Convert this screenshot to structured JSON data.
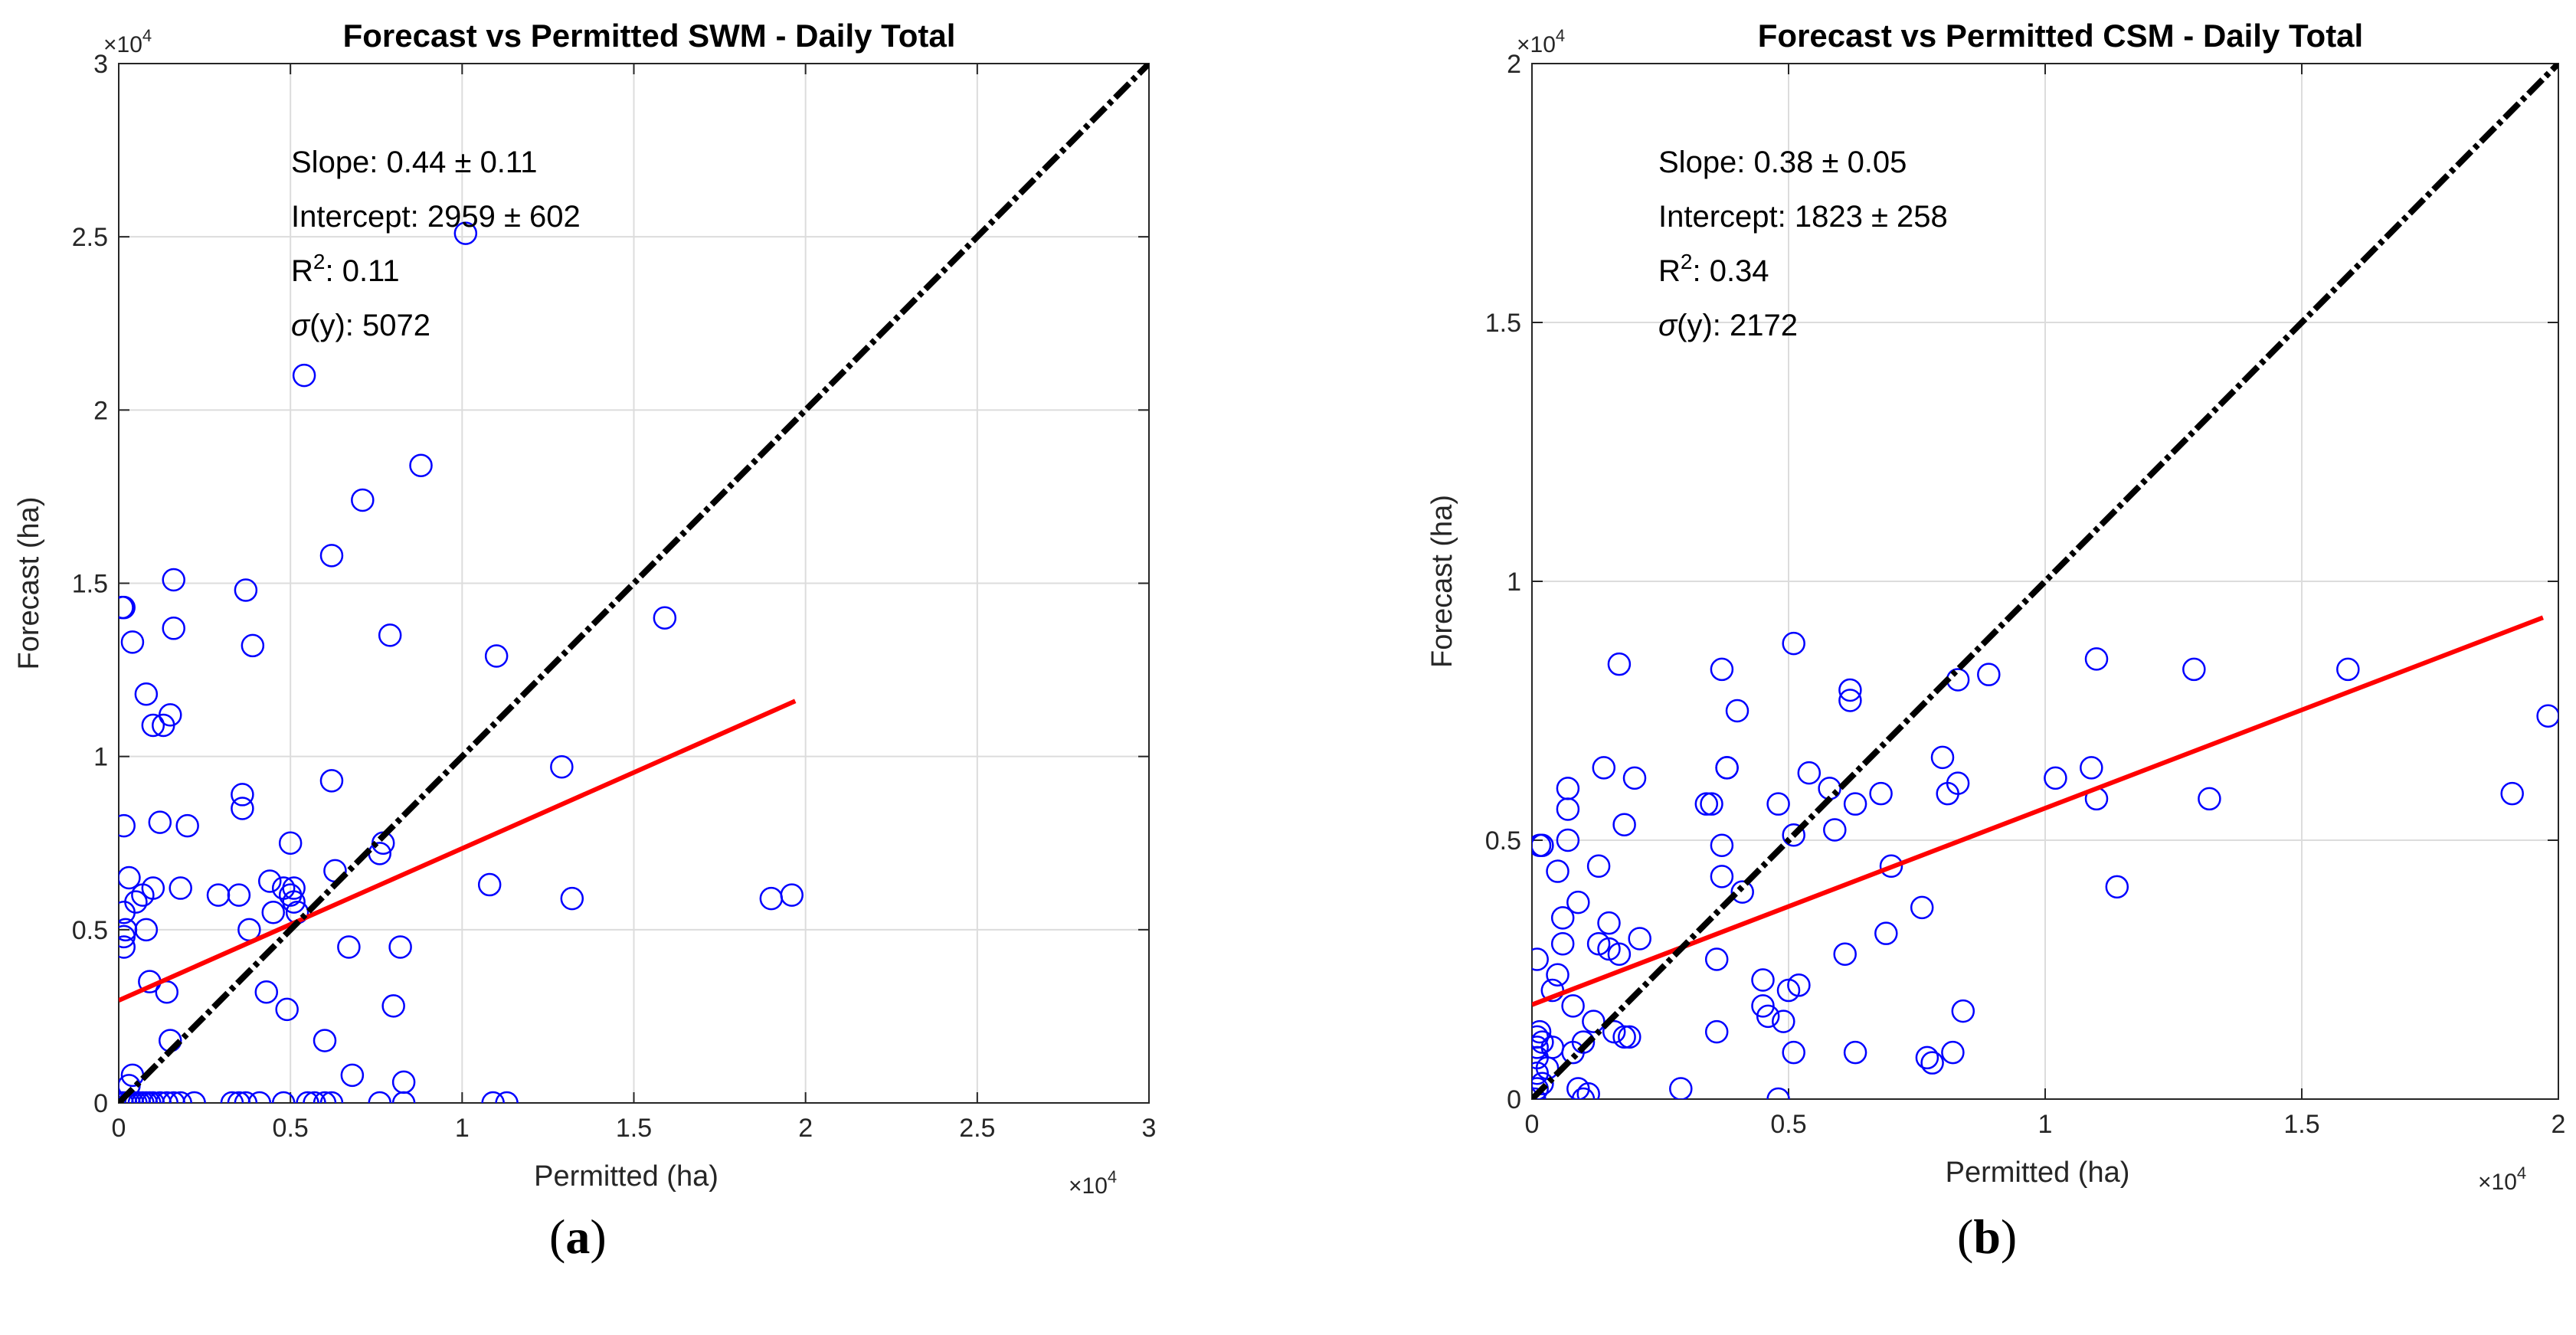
{
  "chart_data": [
    {
      "type": "scatter",
      "panel_label": "a",
      "title": "Forecast vs Permitted SWM - Daily Total",
      "xlabel": "Permitted (ha)",
      "ylabel": "Forecast (ha)",
      "x_multiplier": "×10",
      "y_multiplier": "×10",
      "multiplier_exponent": "4",
      "xlim": [
        0,
        30000
      ],
      "ylim": [
        0,
        30000
      ],
      "xticks": [
        0,
        5000,
        10000,
        15000,
        20000,
        25000,
        30000
      ],
      "yticks": [
        0,
        5000,
        10000,
        15000,
        20000,
        25000,
        30000
      ],
      "xtick_labels": [
        "0",
        "0.5",
        "1",
        "1.5",
        "2",
        "2.5",
        "3"
      ],
      "ytick_labels": [
        "0",
        "0.5",
        "1",
        "1.5",
        "2",
        "2.5",
        "3"
      ],
      "grid": true,
      "stats": {
        "slope": "Slope: 0.44 ± 0.11",
        "intercept": "Intercept: 2959 ± 602",
        "r2_prefix": "R",
        "r2_sup": "2",
        "r2_value": ": 0.11",
        "sigma_sym": "σ",
        "sigma_value": "(y): 5072"
      },
      "colors": {
        "points": "#0000ff",
        "fit": "#ff0000",
        "identity": "#000000"
      },
      "identity_line": {
        "x": [
          0,
          30000
        ],
        "y": [
          0,
          30000
        ]
      },
      "fit_line": {
        "x": [
          0,
          19700
        ],
        "y": [
          2959,
          11600
        ]
      },
      "points": [
        [
          100,
          0
        ],
        [
          200,
          0
        ],
        [
          300,
          0
        ],
        [
          400,
          0
        ],
        [
          500,
          0
        ],
        [
          600,
          0
        ],
        [
          700,
          0
        ],
        [
          800,
          0
        ],
        [
          900,
          0
        ],
        [
          1000,
          0
        ],
        [
          1200,
          0
        ],
        [
          1400,
          0
        ],
        [
          1600,
          0
        ],
        [
          1800,
          0
        ],
        [
          2200,
          0
        ],
        [
          3300,
          0
        ],
        [
          3500,
          0
        ],
        [
          3700,
          0
        ],
        [
          4100,
          0
        ],
        [
          4800,
          0
        ],
        [
          5500,
          0
        ],
        [
          5700,
          0
        ],
        [
          6000,
          0
        ],
        [
          6200,
          0
        ],
        [
          7600,
          0
        ],
        [
          8300,
          0
        ],
        [
          10900,
          0
        ],
        [
          11300,
          0
        ],
        [
          300,
          500
        ],
        [
          400,
          800
        ],
        [
          150,
          5500
        ],
        [
          150,
          4500
        ],
        [
          150,
          4800
        ],
        [
          200,
          5000
        ],
        [
          300,
          6500
        ],
        [
          150,
          8000
        ],
        [
          150,
          14300
        ],
        [
          400,
          13300
        ],
        [
          500,
          5800
        ],
        [
          700,
          6000
        ],
        [
          800,
          5000
        ],
        [
          900,
          3500
        ],
        [
          1000,
          6200
        ],
        [
          1000,
          10900
        ],
        [
          1200,
          8100
        ],
        [
          1300,
          10900
        ],
        [
          1400,
          3200
        ],
        [
          1500,
          11200
        ],
        [
          1500,
          1800
        ],
        [
          1600,
          15100
        ],
        [
          1600,
          13700
        ],
        [
          1800,
          6200
        ],
        [
          2000,
          8000
        ],
        [
          2900,
          6000
        ],
        [
          3500,
          6000
        ],
        [
          3600,
          8900
        ],
        [
          3600,
          8500
        ],
        [
          3700,
          14800
        ],
        [
          3800,
          5000
        ],
        [
          3900,
          13200
        ],
        [
          4300,
          3200
        ],
        [
          4400,
          6400
        ],
        [
          4500,
          5500
        ],
        [
          4800,
          6200
        ],
        [
          4900,
          2700
        ],
        [
          5000,
          7500
        ],
        [
          5000,
          6000
        ],
        [
          5100,
          5800
        ],
        [
          5100,
          6200
        ],
        [
          5200,
          5500
        ],
        [
          6000,
          1800
        ],
        [
          6200,
          15800
        ],
        [
          6200,
          9300
        ],
        [
          6300,
          6700
        ],
        [
          6700,
          4500
        ],
        [
          6800,
          800
        ],
        [
          7100,
          17400
        ],
        [
          7600,
          7200
        ],
        [
          7700,
          7500
        ],
        [
          7900,
          13500
        ],
        [
          8000,
          2800
        ],
        [
          8200,
          4500
        ],
        [
          8300,
          600
        ],
        [
          8800,
          18400
        ],
        [
          5400,
          21000
        ],
        [
          10100,
          25100
        ],
        [
          10800,
          6300
        ],
        [
          11000,
          12900
        ],
        [
          12900,
          9700
        ],
        [
          13200,
          5900
        ],
        [
          15900,
          14000
        ],
        [
          19000,
          5900
        ],
        [
          19600,
          6000
        ],
        [
          100,
          14300
        ],
        [
          800,
          11800
        ]
      ]
    },
    {
      "type": "scatter",
      "panel_label": "b",
      "title": "Forecast vs Permitted CSM - Daily Total",
      "xlabel": "Permitted (ha)",
      "ylabel": "Forecast (ha)",
      "x_multiplier": "×10",
      "y_multiplier": "×10",
      "multiplier_exponent": "4",
      "xlim": [
        0,
        20000
      ],
      "ylim": [
        0,
        20000
      ],
      "xticks": [
        0,
        5000,
        10000,
        15000,
        20000
      ],
      "yticks": [
        0,
        5000,
        10000,
        15000,
        20000
      ],
      "xtick_labels": [
        "0",
        "0.5",
        "1",
        "1.5",
        "2"
      ],
      "ytick_labels": [
        "0",
        "0.5",
        "1",
        "1.5",
        "2"
      ],
      "grid": true,
      "stats": {
        "slope": "Slope: 0.38 ± 0.05",
        "intercept": "Intercept: 1823 ± 258",
        "r2_prefix": "R",
        "r2_sup": "2",
        "r2_value": ": 0.34",
        "sigma_sym": "σ",
        "sigma_value": "(y): 2172"
      },
      "colors": {
        "points": "#0000ff",
        "fit": "#ff0000",
        "identity": "#000000"
      },
      "identity_line": {
        "x": [
          0,
          20000
        ],
        "y": [
          0,
          20000
        ]
      },
      "fit_line": {
        "x": [
          0,
          19700
        ],
        "y": [
          1823,
          9300
        ]
      },
      "points": [
        [
          50,
          0
        ],
        [
          100,
          200
        ],
        [
          100,
          500
        ],
        [
          100,
          800
        ],
        [
          100,
          1000
        ],
        [
          100,
          1200
        ],
        [
          150,
          1300
        ],
        [
          200,
          300
        ],
        [
          200,
          1100
        ],
        [
          300,
          600
        ],
        [
          400,
          1000
        ],
        [
          100,
          2700
        ],
        [
          150,
          4900
        ],
        [
          200,
          4900
        ],
        [
          400,
          2100
        ],
        [
          500,
          2400
        ],
        [
          500,
          4400
        ],
        [
          600,
          3500
        ],
        [
          600,
          3000
        ],
        [
          700,
          6000
        ],
        [
          700,
          5600
        ],
        [
          700,
          5000
        ],
        [
          800,
          900
        ],
        [
          800,
          1800
        ],
        [
          900,
          200
        ],
        [
          900,
          3800
        ],
        [
          1000,
          1100
        ],
        [
          1000,
          0
        ],
        [
          1100,
          100
        ],
        [
          1200,
          1500
        ],
        [
          1300,
          4500
        ],
        [
          1300,
          3000
        ],
        [
          1400,
          6400
        ],
        [
          1500,
          3400
        ],
        [
          1500,
          2900
        ],
        [
          1600,
          1300
        ],
        [
          1700,
          8400
        ],
        [
          1700,
          2800
        ],
        [
          1800,
          1200
        ],
        [
          1800,
          5300
        ],
        [
          1900,
          1200
        ],
        [
          2000,
          6200
        ],
        [
          2100,
          3100
        ],
        [
          2900,
          200
        ],
        [
          3400,
          5700
        ],
        [
          3500,
          5700
        ],
        [
          3600,
          1300
        ],
        [
          3600,
          2700
        ],
        [
          3700,
          4900
        ],
        [
          3700,
          4300
        ],
        [
          3700,
          8300
        ],
        [
          3800,
          6400
        ],
        [
          3800,
          6400
        ],
        [
          4000,
          7500
        ],
        [
          4100,
          4000
        ],
        [
          4500,
          2300
        ],
        [
          4500,
          1800
        ],
        [
          4600,
          1600
        ],
        [
          4800,
          0
        ],
        [
          4800,
          5700
        ],
        [
          4900,
          1500
        ],
        [
          5000,
          2100
        ],
        [
          5100,
          8800
        ],
        [
          5100,
          5100
        ],
        [
          5100,
          900
        ],
        [
          5200,
          2200
        ],
        [
          5400,
          6300
        ],
        [
          5800,
          6000
        ],
        [
          5900,
          5200
        ],
        [
          6100,
          2800
        ],
        [
          6200,
          7900
        ],
        [
          6200,
          7700
        ],
        [
          6300,
          5700
        ],
        [
          6300,
          900
        ],
        [
          6800,
          5900
        ],
        [
          6900,
          3200
        ],
        [
          7000,
          4500
        ],
        [
          7600,
          3700
        ],
        [
          7700,
          800
        ],
        [
          7800,
          700
        ],
        [
          8000,
          6600
        ],
        [
          8100,
          5900
        ],
        [
          8200,
          900
        ],
        [
          8300,
          8100
        ],
        [
          8300,
          6100
        ],
        [
          8400,
          1700
        ],
        [
          8900,
          8200
        ],
        [
          10200,
          6200
        ],
        [
          10900,
          6400
        ],
        [
          11000,
          5800
        ],
        [
          11000,
          8500
        ],
        [
          11400,
          4100
        ],
        [
          12900,
          8300
        ],
        [
          13200,
          5800
        ],
        [
          15900,
          8300
        ],
        [
          19100,
          5900
        ],
        [
          19800,
          7400
        ]
      ]
    }
  ]
}
